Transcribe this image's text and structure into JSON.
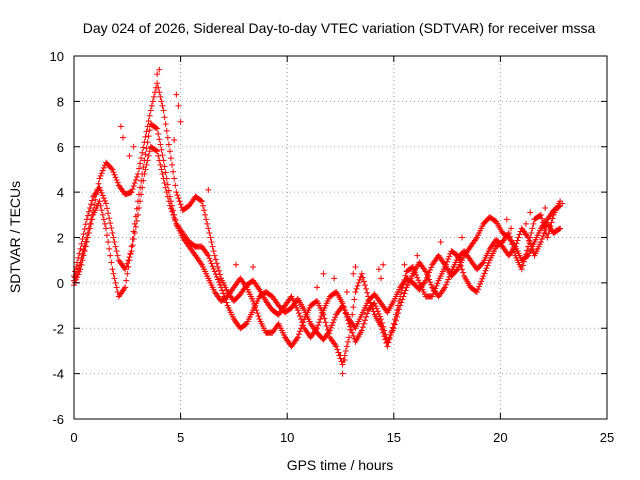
{
  "chart_data": {
    "type": "scatter",
    "title": "Day 024 of 2026, Sidereal Day-to-day VTEC variation (SDTVAR) for receiver mssa",
    "xlabel": "GPS time / hours",
    "ylabel": "SDTVAR / TECUs",
    "xlim": [
      0,
      25
    ],
    "ylim": [
      -6,
      10
    ],
    "xticks": [
      0,
      5,
      10,
      15,
      20,
      25
    ],
    "yticks": [
      -6,
      -4,
      -2,
      0,
      2,
      4,
      6,
      8,
      10
    ],
    "xtick_labels": [
      "0",
      "5",
      "10",
      "15",
      "20",
      "25"
    ],
    "ytick_labels": [
      "-6",
      "-4",
      "-2",
      "0",
      "2",
      "4",
      "6",
      "8",
      "10"
    ],
    "grid": true,
    "marker": "+",
    "series": [
      {
        "name": "SDTVAR",
        "color": "#ff0000",
        "tracks": [
          [
            [
              0.0,
              0.3
            ],
            [
              0.3,
              1.5
            ],
            [
              0.6,
              2.8
            ],
            [
              0.9,
              3.8
            ],
            [
              1.2,
              4.2
            ],
            [
              1.5,
              3.5
            ],
            [
              1.8,
              2.2
            ],
            [
              2.1,
              1.0
            ],
            [
              2.4,
              0.6
            ],
            [
              2.7,
              1.4
            ],
            [
              3.0,
              3.0
            ],
            [
              3.3,
              4.8
            ],
            [
              3.6,
              6.0
            ],
            [
              3.9,
              5.8
            ],
            [
              4.2,
              4.6
            ],
            [
              4.5,
              3.4
            ],
            [
              4.8,
              2.6
            ],
            [
              5.1,
              2.2
            ],
            [
              5.4,
              1.8
            ],
            [
              5.7,
              1.6
            ],
            [
              6.0,
              1.6
            ],
            [
              6.3,
              1.2
            ],
            [
              6.6,
              0.5
            ],
            [
              6.9,
              -0.2
            ],
            [
              7.2,
              -1.0
            ],
            [
              7.5,
              -1.6
            ],
            [
              7.8,
              -2.0
            ],
            [
              8.1,
              -1.8
            ],
            [
              8.4,
              -1.2
            ],
            [
              8.7,
              -0.6
            ],
            [
              9.0,
              -0.4
            ],
            [
              9.3,
              -0.6
            ],
            [
              9.6,
              -1.0
            ],
            [
              9.9,
              -1.3
            ],
            [
              10.2,
              -1.1
            ],
            [
              10.5,
              -0.7
            ],
            [
              10.8,
              -1.2
            ],
            [
              11.1,
              -1.8
            ],
            [
              11.4,
              -2.2
            ],
            [
              11.7,
              -2.5
            ],
            [
              12.0,
              -2.1
            ],
            [
              12.3,
              -1.4
            ],
            [
              12.6,
              -1.0
            ],
            [
              12.9,
              -1.6
            ],
            [
              13.2,
              -2.0
            ],
            [
              13.5,
              -1.4
            ],
            [
              13.8,
              -0.8
            ],
            [
              14.1,
              -0.5
            ],
            [
              14.4,
              -0.9
            ],
            [
              14.7,
              -1.3
            ],
            [
              15.0,
              -0.8
            ],
            [
              15.3,
              -0.2
            ],
            [
              15.6,
              0.2
            ],
            [
              15.9,
              0.0
            ],
            [
              16.2,
              -0.3
            ],
            [
              16.5,
              0.1
            ],
            [
              16.8,
              0.8
            ],
            [
              17.1,
              1.2
            ],
            [
              17.4,
              0.8
            ],
            [
              17.7,
              0.3
            ],
            [
              18.0,
              0.6
            ],
            [
              18.3,
              1.2
            ],
            [
              18.6,
              1.6
            ],
            [
              18.9,
              2.0
            ],
            [
              19.2,
              2.6
            ],
            [
              19.5,
              2.9
            ],
            [
              19.8,
              2.7
            ],
            [
              20.1,
              2.2
            ],
            [
              20.4,
              2.0
            ],
            [
              20.7,
              1.6
            ],
            [
              21.0,
              1.0
            ],
            [
              21.3,
              1.2
            ],
            [
              21.6,
              1.8
            ],
            [
              21.9,
              2.4
            ],
            [
              22.2,
              2.8
            ],
            [
              22.5,
              3.2
            ],
            [
              22.8,
              3.4
            ]
          ],
          [
            [
              0.0,
              0.1
            ],
            [
              0.3,
              0.9
            ],
            [
              0.6,
              2.0
            ],
            [
              0.9,
              3.2
            ],
            [
              1.2,
              4.6
            ],
            [
              1.5,
              5.3
            ],
            [
              1.8,
              5.0
            ],
            [
              2.1,
              4.3
            ],
            [
              2.4,
              3.9
            ],
            [
              2.7,
              4.0
            ],
            [
              3.0,
              4.8
            ],
            [
              3.3,
              6.2
            ],
            [
              3.6,
              7.6
            ],
            [
              3.9,
              8.8
            ],
            [
              4.2,
              7.6
            ],
            [
              4.5,
              5.8
            ],
            [
              4.8,
              4.0
            ],
            [
              5.1,
              3.2
            ],
            [
              5.4,
              3.4
            ],
            [
              5.7,
              3.8
            ],
            [
              6.0,
              3.6
            ],
            [
              6.3,
              2.4
            ],
            [
              6.6,
              1.2
            ],
            [
              6.9,
              0.2
            ],
            [
              7.2,
              -0.4
            ],
            [
              7.5,
              -0.8
            ],
            [
              7.8,
              -0.5
            ],
            [
              8.1,
              -0.1
            ],
            [
              8.4,
              0.1
            ],
            [
              8.7,
              -0.3
            ],
            [
              9.0,
              -0.8
            ],
            [
              9.3,
              -1.2
            ],
            [
              9.6,
              -1.4
            ],
            [
              9.9,
              -1.0
            ],
            [
              10.2,
              -0.6
            ],
            [
              10.5,
              -1.2
            ],
            [
              10.8,
              -2.0
            ],
            [
              11.1,
              -2.4
            ],
            [
              11.4,
              -2.0
            ],
            [
              11.7,
              -1.2
            ],
            [
              12.0,
              -0.6
            ],
            [
              12.3,
              -0.4
            ],
            [
              12.6,
              -0.9
            ],
            [
              12.9,
              -1.8
            ],
            [
              13.2,
              -2.6
            ],
            [
              13.5,
              -2.1
            ],
            [
              13.8,
              -1.2
            ],
            [
              14.1,
              -0.9
            ],
            [
              14.4,
              -1.6
            ],
            [
              14.7,
              -2.6
            ],
            [
              15.0,
              -2.0
            ],
            [
              15.3,
              -1.0
            ],
            [
              15.6,
              -0.2
            ],
            [
              15.9,
              0.4
            ],
            [
              16.2,
              0.9
            ],
            [
              16.5,
              0.5
            ],
            [
              16.8,
              -0.2
            ],
            [
              17.1,
              -0.6
            ],
            [
              17.4,
              -0.2
            ],
            [
              17.7,
              0.5
            ],
            [
              18.0,
              1.1
            ],
            [
              18.3,
              1.4
            ],
            [
              18.6,
              1.0
            ],
            [
              18.9,
              0.6
            ],
            [
              19.2,
              0.9
            ],
            [
              19.5,
              1.5
            ],
            [
              19.8,
              1.9
            ],
            [
              20.1,
              1.6
            ],
            [
              20.4,
              1.2
            ],
            [
              20.7,
              1.6
            ],
            [
              21.0,
              2.4
            ],
            [
              21.3,
              2.0
            ],
            [
              21.6,
              1.2
            ],
            [
              21.9,
              1.8
            ],
            [
              22.2,
              2.6
            ],
            [
              22.5,
              2.2
            ],
            [
              22.8,
              2.4
            ]
          ],
          [
            [
              0.0,
              -0.1
            ],
            [
              0.3,
              0.6
            ],
            [
              0.6,
              1.8
            ],
            [
              0.9,
              3.0
            ],
            [
              1.2,
              3.6
            ],
            [
              1.5,
              2.4
            ],
            [
              1.8,
              0.6
            ],
            [
              2.1,
              -0.6
            ],
            [
              2.4,
              -0.2
            ],
            [
              2.7,
              1.6
            ],
            [
              3.0,
              3.6
            ],
            [
              3.3,
              5.4
            ],
            [
              3.6,
              7.0
            ],
            [
              3.9,
              6.8
            ],
            [
              4.2,
              5.4
            ],
            [
              4.5,
              3.8
            ],
            [
              4.8,
              2.6
            ],
            [
              5.1,
              2.0
            ],
            [
              5.4,
              1.6
            ],
            [
              5.7,
              1.2
            ],
            [
              6.0,
              0.8
            ],
            [
              6.3,
              0.2
            ],
            [
              6.6,
              -0.4
            ],
            [
              6.9,
              -0.8
            ],
            [
              7.2,
              -0.6
            ],
            [
              7.5,
              -0.2
            ],
            [
              7.8,
              0.2
            ],
            [
              8.1,
              -0.2
            ],
            [
              8.4,
              -0.8
            ],
            [
              8.7,
              -1.6
            ],
            [
              9.0,
              -2.2
            ],
            [
              9.3,
              -2.2
            ],
            [
              9.6,
              -1.8
            ],
            [
              9.9,
              -2.4
            ],
            [
              10.2,
              -2.8
            ],
            [
              10.5,
              -2.4
            ],
            [
              10.8,
              -1.6
            ],
            [
              11.1,
              -1.0
            ],
            [
              11.4,
              -0.8
            ],
            [
              11.7,
              -1.4
            ],
            [
              12.0,
              -2.4
            ],
            [
              12.3,
              -2.8
            ],
            [
              12.6,
              -3.6
            ],
            [
              12.9,
              -2.4
            ],
            [
              13.2,
              -0.4
            ],
            [
              13.5,
              0.4
            ],
            [
              13.8,
              -0.6
            ],
            [
              14.1,
              -1.4
            ],
            [
              14.4,
              -1.9
            ],
            [
              14.7,
              -2.8
            ],
            [
              15.0,
              -1.8
            ],
            [
              15.3,
              -0.6
            ],
            [
              15.6,
              0.5
            ],
            [
              15.9,
              0.7
            ],
            [
              16.2,
              0.0
            ],
            [
              16.5,
              -0.6
            ],
            [
              16.8,
              -0.6
            ],
            [
              17.1,
              0.1
            ],
            [
              17.4,
              0.7
            ],
            [
              17.7,
              1.4
            ],
            [
              18.0,
              1.2
            ],
            [
              18.3,
              0.3
            ],
            [
              18.6,
              -0.2
            ],
            [
              18.9,
              -0.4
            ],
            [
              19.2,
              0.3
            ],
            [
              19.5,
              1.0
            ],
            [
              19.8,
              1.6
            ],
            [
              20.1,
              1.8
            ],
            [
              20.4,
              2.2
            ],
            [
              20.7,
              1.2
            ],
            [
              21.0,
              0.6
            ],
            [
              21.3,
              1.6
            ],
            [
              21.6,
              2.8
            ],
            [
              21.9,
              3.0
            ],
            [
              22.2,
              2.0
            ],
            [
              22.5,
              3.0
            ],
            [
              22.8,
              3.6
            ]
          ]
        ],
        "scattered": [
          [
            2.2,
            6.9
          ],
          [
            2.3,
            6.4
          ],
          [
            2.6,
            5.6
          ],
          [
            2.8,
            6.0
          ],
          [
            4.0,
            9.4
          ],
          [
            3.9,
            9.2
          ],
          [
            4.8,
            8.3
          ],
          [
            4.9,
            7.8
          ],
          [
            5.0,
            7.1
          ],
          [
            4.7,
            6.3
          ],
          [
            6.3,
            4.1
          ],
          [
            7.6,
            0.8
          ],
          [
            8.4,
            0.7
          ],
          [
            11.4,
            -0.2
          ],
          [
            11.7,
            0.4
          ],
          [
            12.2,
            0.2
          ],
          [
            12.8,
            -0.4
          ],
          [
            13.1,
            0.4
          ],
          [
            13.2,
            0.7
          ],
          [
            12.5,
            -3.2
          ],
          [
            12.6,
            -4.0
          ],
          [
            12.7,
            -3.4
          ],
          [
            14.3,
            0.6
          ],
          [
            14.5,
            0.8
          ],
          [
            14.4,
            0.2
          ],
          [
            15.5,
            0.8
          ],
          [
            16.1,
            1.2
          ],
          [
            17.2,
            1.8
          ],
          [
            18.2,
            2.0
          ],
          [
            20.3,
            2.8
          ],
          [
            20.5,
            2.4
          ],
          [
            21.2,
            2.6
          ],
          [
            21.4,
            3.1
          ],
          [
            22.1,
            3.3
          ],
          [
            22.6,
            2.3
          ],
          [
            22.9,
            3.5
          ]
        ]
      }
    ]
  }
}
